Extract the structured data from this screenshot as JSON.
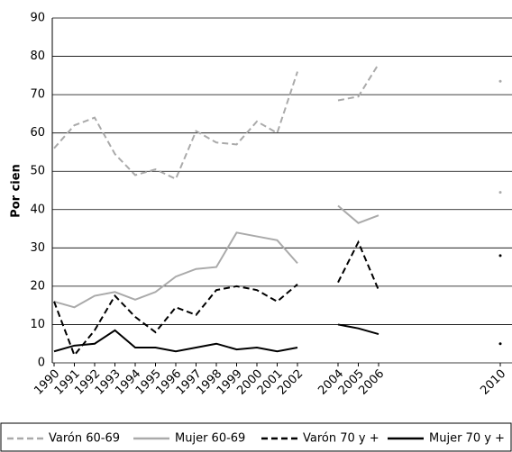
{
  "chart_data": {
    "type": "line",
    "y_label": "Por cien",
    "categories": [
      "1990",
      "1991",
      "1992",
      "1993",
      "1994",
      "1995",
      "1996",
      "1997",
      "1998",
      "1999",
      "2000",
      "2001",
      "2002",
      null,
      "2004",
      "2005",
      "2006",
      null,
      null,
      null,
      null,
      null,
      "2010"
    ],
    "series": [
      {
        "name": "Varón 60-69",
        "color": "#aaaaaa",
        "dashed": true,
        "values": [
          56,
          62,
          64,
          54.5,
          49,
          50.5,
          48,
          60.5,
          57.5,
          57,
          63,
          60,
          76,
          null,
          68.5,
          69.5,
          78,
          null,
          null,
          null,
          null,
          null,
          73.5
        ]
      },
      {
        "name": "Mujer 60-69",
        "color": "#aaaaaa",
        "dashed": false,
        "values": [
          16,
          14.5,
          17.5,
          18.5,
          16.5,
          18.5,
          22.5,
          24.5,
          25,
          34,
          33,
          32,
          26,
          null,
          41,
          36.5,
          38.5,
          null,
          null,
          null,
          null,
          null,
          44.5
        ]
      },
      {
        "name": "Varón 70 y +",
        "color": "#000000",
        "dashed": true,
        "values": [
          16,
          2,
          8.5,
          17.5,
          12,
          8,
          14.5,
          12.5,
          19,
          20,
          19,
          16,
          20.5,
          null,
          21,
          31.5,
          19,
          null,
          null,
          null,
          null,
          null,
          28
        ]
      },
      {
        "name": "Mujer 70 y +",
        "color": "#000000",
        "dashed": false,
        "values": [
          3,
          4.5,
          5,
          8.5,
          4,
          4,
          3,
          4,
          5,
          3.5,
          4,
          3,
          4,
          null,
          10,
          9,
          7.5,
          null,
          null,
          null,
          null,
          null,
          5
        ]
      }
    ],
    "ylim": [
      0,
      90
    ],
    "yticks": [
      0,
      10,
      20,
      30,
      40,
      50,
      60,
      70,
      80,
      90
    ],
    "grid": true
  }
}
